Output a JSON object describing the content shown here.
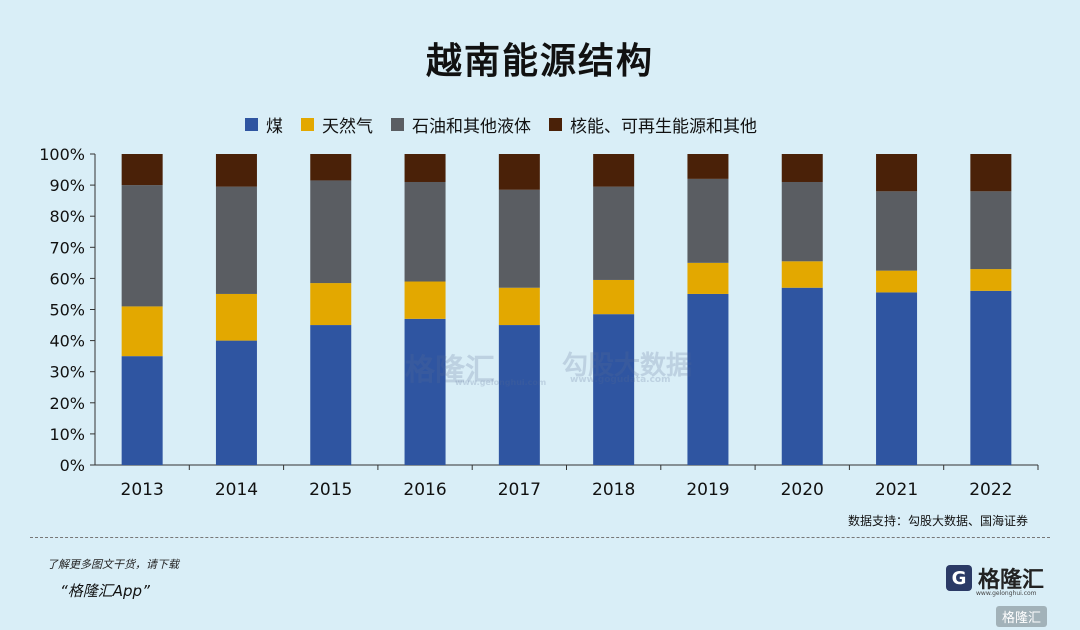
{
  "title": "越南能源结构",
  "chart_data": {
    "type": "bar",
    "stacked": true,
    "categories": [
      "2013",
      "2014",
      "2015",
      "2016",
      "2017",
      "2018",
      "2019",
      "2020",
      "2021",
      "2022"
    ],
    "series": [
      {
        "name": "煤",
        "color": "#2f55a1",
        "values": [
          35,
          40,
          45,
          47,
          45,
          48.5,
          55,
          57,
          55.5,
          56
        ]
      },
      {
        "name": "天然气",
        "color": "#e3a800",
        "values": [
          16,
          15,
          13.5,
          12,
          12,
          11,
          10,
          8.5,
          7,
          7
        ]
      },
      {
        "name": "石油和其他液体",
        "color": "#5a5d62",
        "values": [
          39,
          34.5,
          33,
          32,
          31.5,
          30,
          27,
          25.5,
          25.5,
          25
        ]
      },
      {
        "name": "核能、可再生能源和其他",
        "color": "#4a2108",
        "values": [
          10,
          10.5,
          8.5,
          9,
          11.5,
          10.5,
          8,
          9,
          12,
          12
        ]
      }
    ],
    "ylim": [
      0,
      100
    ],
    "yticks": [
      "0%",
      "10%",
      "20%",
      "30%",
      "40%",
      "50%",
      "60%",
      "70%",
      "80%",
      "90%",
      "100%"
    ],
    "legend": "top",
    "grid": false
  },
  "source": "数据支持：勾股大数据、国海证券",
  "promo": {
    "line1": "了解更多图文干货，请下载",
    "line2": "“格隆汇App”"
  },
  "brand": {
    "icon": "G",
    "name": "格隆汇",
    "url": "www.gelonghui.com",
    "corner": "格隆汇"
  },
  "watermark": {
    "left": "格隆汇",
    "left_url": "www.gelonghui.com",
    "right": "勾股大数据",
    "right_url": "www.gogudata.com"
  }
}
